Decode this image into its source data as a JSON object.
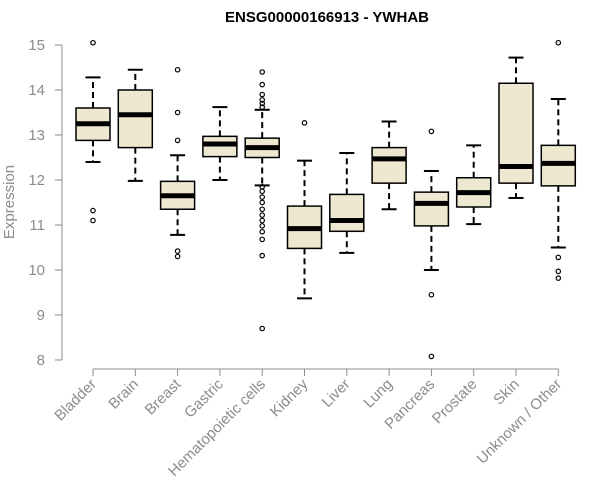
{
  "chart_data": {
    "type": "boxplot",
    "title": "ENSG00000166913 - YWHAB",
    "xlabel": "",
    "ylabel": "Expression",
    "ylim": [
      8,
      15
    ],
    "yticks": [
      8,
      9,
      10,
      11,
      12,
      13,
      14,
      15
    ],
    "box_fill": "#ede8cf",
    "categories": [
      "Bladder",
      "Brain",
      "Breast",
      "Gastric",
      "Hematopoietic cells",
      "Kidney",
      "Liver",
      "Lung",
      "Pancreas",
      "Prostate",
      "Skin",
      "Unknown / Other"
    ],
    "boxes": [
      {
        "name": "Bladder",
        "whisker_low": 12.4,
        "q1": 12.88,
        "median": 13.25,
        "q3": 13.6,
        "whisker_high": 14.28,
        "outliers": [
          15.05,
          11.32,
          11.1
        ]
      },
      {
        "name": "Brain",
        "whisker_low": 11.98,
        "q1": 12.72,
        "median": 13.45,
        "q3": 14.0,
        "whisker_high": 14.45,
        "outliers": []
      },
      {
        "name": "Breast",
        "whisker_low": 10.78,
        "q1": 11.35,
        "median": 11.65,
        "q3": 11.97,
        "whisker_high": 12.55,
        "outliers": [
          14.45,
          13.5,
          12.88,
          10.42,
          10.3
        ]
      },
      {
        "name": "Gastric",
        "whisker_low": 12.0,
        "q1": 12.52,
        "median": 12.8,
        "q3": 12.97,
        "whisker_high": 13.62,
        "outliers": []
      },
      {
        "name": "Hematopoietic cells",
        "whisker_low": 11.88,
        "q1": 12.5,
        "median": 12.72,
        "q3": 12.93,
        "whisker_high": 13.56,
        "outliers": [
          14.4,
          14.12,
          13.9,
          13.78,
          13.7,
          13.62,
          11.85,
          11.75,
          11.62,
          11.5,
          11.35,
          11.22,
          11.1,
          10.98,
          10.85,
          10.68,
          10.32,
          8.7
        ]
      },
      {
        "name": "Kidney",
        "whisker_low": 9.37,
        "q1": 10.48,
        "median": 10.92,
        "q3": 11.42,
        "whisker_high": 12.43,
        "outliers": [
          13.27
        ]
      },
      {
        "name": "Liver",
        "whisker_low": 10.38,
        "q1": 10.86,
        "median": 11.1,
        "q3": 11.68,
        "whisker_high": 12.6,
        "outliers": []
      },
      {
        "name": "Lung",
        "whisker_low": 11.35,
        "q1": 11.93,
        "median": 12.47,
        "q3": 12.72,
        "whisker_high": 13.3,
        "outliers": []
      },
      {
        "name": "Pancreas",
        "whisker_low": 10.0,
        "q1": 10.98,
        "median": 11.48,
        "q3": 11.73,
        "whisker_high": 12.2,
        "outliers": [
          13.08,
          9.45,
          8.08
        ]
      },
      {
        "name": "Prostate",
        "whisker_low": 11.02,
        "q1": 11.4,
        "median": 11.72,
        "q3": 12.05,
        "whisker_high": 12.77,
        "outliers": []
      },
      {
        "name": "Skin",
        "whisker_low": 11.6,
        "q1": 11.93,
        "median": 12.3,
        "q3": 14.15,
        "whisker_high": 14.72,
        "outliers": []
      },
      {
        "name": "Unknown / Other",
        "whisker_low": 10.5,
        "q1": 11.87,
        "median": 12.37,
        "q3": 12.77,
        "whisker_high": 13.8,
        "outliers": [
          15.05,
          10.28,
          9.97,
          9.82
        ]
      }
    ]
  }
}
